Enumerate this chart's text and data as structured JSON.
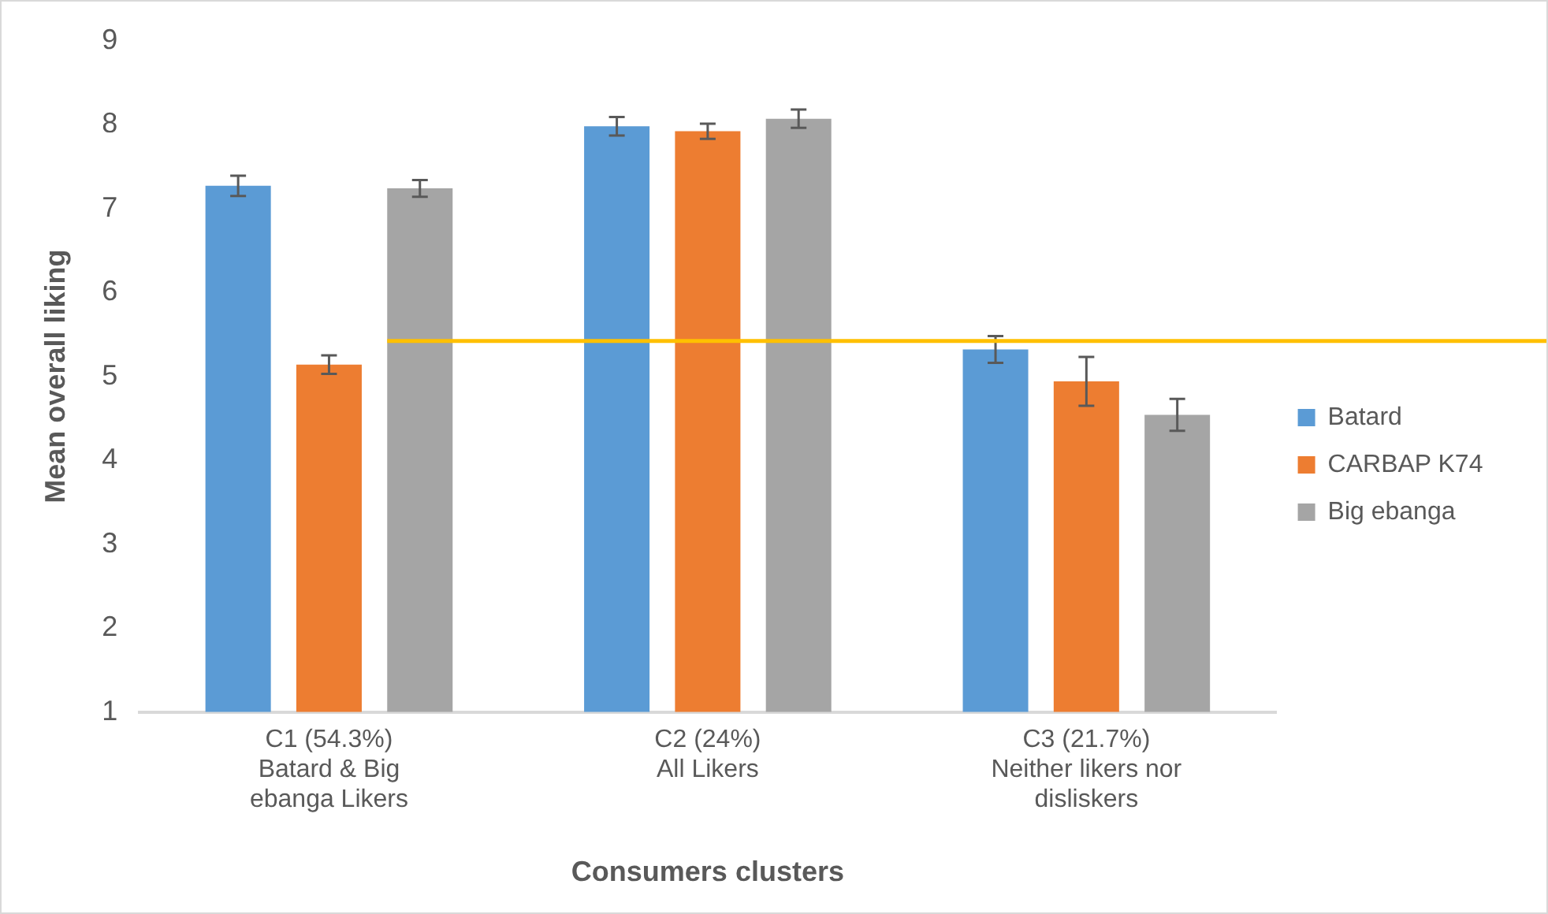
{
  "chart_data": {
    "type": "bar",
    "xlabel": "Consumers clusters",
    "ylabel": "Mean overall liking",
    "categories": [
      "C1 (54.3%)\nBatard & Big\nebanga Likers",
      "C2 (24%)\nAll Likers",
      "C3 (21.7%)\nNeither likers nor\ndisliskers"
    ],
    "series": [
      {
        "name": "Batard",
        "color": "#5b9bd5",
        "values": [
          7.27,
          7.98,
          5.32
        ],
        "errors": [
          0.12,
          0.11,
          0.16
        ]
      },
      {
        "name": "CARBAP K74",
        "color": "#ed7d31",
        "values": [
          5.14,
          7.92,
          4.94
        ],
        "errors": [
          0.11,
          0.09,
          0.29
        ]
      },
      {
        "name": "Big ebanga",
        "color": "#a5a5a5",
        "values": [
          7.24,
          8.07,
          4.54
        ],
        "errors": [
          0.1,
          0.11,
          0.19
        ]
      }
    ],
    "ylim": [
      1,
      9
    ],
    "yticks": [
      1,
      2,
      3,
      4,
      5,
      6,
      7,
      8,
      9
    ],
    "grid": false,
    "legend": "right",
    "ref_lines": [
      {
        "axis": "y",
        "value": 5.42,
        "color": "#ffc000"
      }
    ]
  }
}
